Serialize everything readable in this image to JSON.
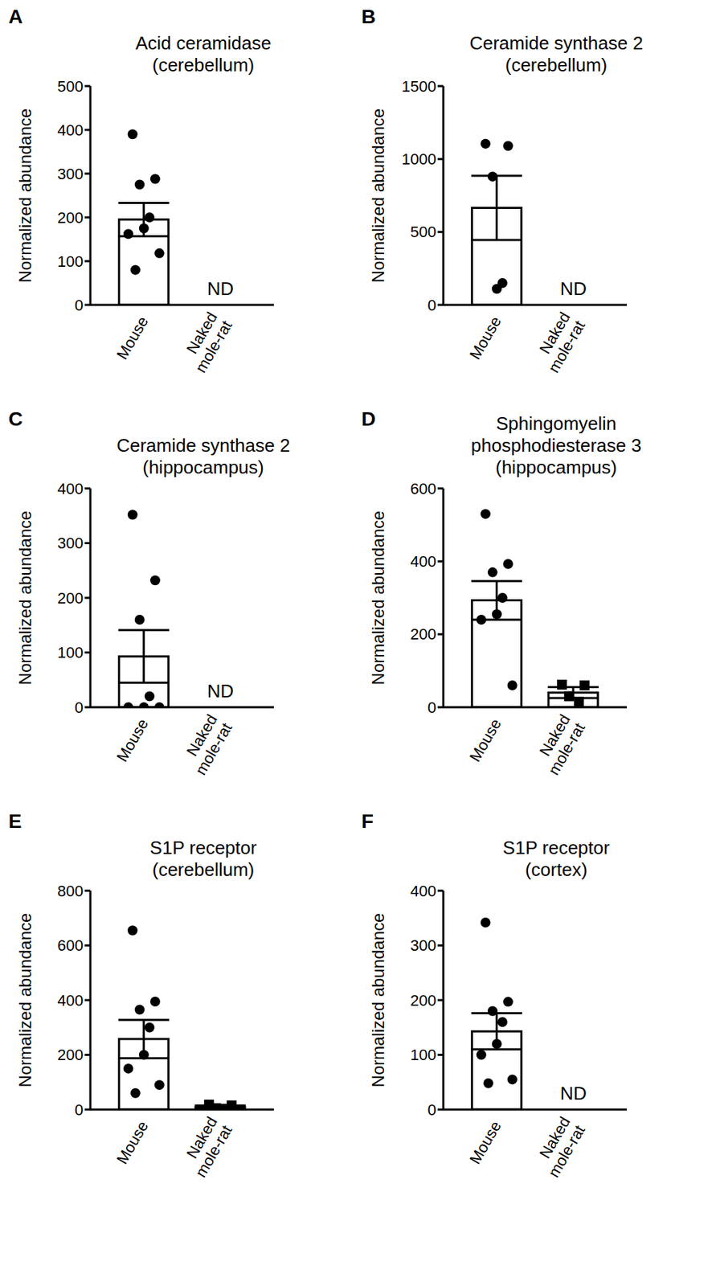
{
  "chart_data": [
    {
      "panel_label": "A",
      "type": "bar",
      "title": "Acid ceramidase\n(cerebellum)",
      "y_label": "Normalized abundance",
      "categories": [
        "Mouse",
        "Naked mole-rat"
      ],
      "values": [
        195,
        0
      ],
      "error": [
        38,
        null
      ],
      "points": [
        [
          390,
          288,
          275,
          200,
          175,
          162,
          118,
          80
        ],
        []
      ],
      "color": "#000000",
      "ylim": [
        0,
        500
      ],
      "yticks": [
        0,
        100,
        200,
        300,
        400,
        500
      ],
      "annotations": [
        {
          "x": "Naked mole-rat",
          "text": "ND"
        }
      ]
    },
    {
      "panel_label": "B",
      "type": "bar",
      "title": "Ceramide synthase 2\n(cerebellum)",
      "y_label": "Normalized abundance",
      "categories": [
        "Mouse",
        "Naked mole-rat"
      ],
      "values": [
        665,
        0
      ],
      "error": [
        220,
        null
      ],
      "points": [
        [
          1105,
          1090,
          880,
          150,
          110
        ],
        []
      ],
      "color": "#000000",
      "ylim": [
        0,
        1500
      ],
      "yticks": [
        0,
        500,
        1000,
        1500
      ],
      "annotations": [
        {
          "x": "Naked mole-rat",
          "text": "ND"
        }
      ]
    },
    {
      "panel_label": "C",
      "type": "bar",
      "title": "Ceramide synthase 2\n(hippocampus)",
      "y_label": "Normalized abundance",
      "categories": [
        "Mouse",
        "Naked mole-rat"
      ],
      "values": [
        93,
        0
      ],
      "error": [
        48,
        null
      ],
      "points": [
        [
          352,
          232,
          160,
          20,
          0,
          0,
          0
        ],
        []
      ],
      "color": "#000000",
      "ylim": [
        0,
        400
      ],
      "yticks": [
        0,
        100,
        200,
        300,
        400
      ],
      "annotations": [
        {
          "x": "Naked mole-rat",
          "text": "ND"
        }
      ]
    },
    {
      "panel_label": "D",
      "type": "bar",
      "title": "Sphingomyelin\nphosphodiesterase 3\n(hippocampus)",
      "y_label": "Normalized abundance",
      "categories": [
        "Mouse",
        "Naked mole-rat"
      ],
      "values": [
        293,
        40
      ],
      "error": [
        53,
        15
      ],
      "points": [
        [
          530,
          393,
          370,
          300,
          255,
          240,
          60
        ],
        [
          62,
          60,
          30,
          15
        ]
      ],
      "color": "#000000",
      "ylim": [
        0,
        600
      ],
      "yticks": [
        0,
        200,
        400,
        600
      ],
      "annotations": []
    },
    {
      "panel_label": "E",
      "type": "bar",
      "title": "S1P receptor\n(cerebellum)",
      "y_label": "Normalized abundance",
      "categories": [
        "Mouse",
        "Naked mole-rat"
      ],
      "values": [
        258,
        10
      ],
      "error": [
        70,
        5
      ],
      "points": [
        [
          655,
          395,
          365,
          300,
          200,
          150,
          90,
          60
        ],
        [
          18,
          15,
          5,
          3
        ]
      ],
      "color": "#000000",
      "ylim": [
        0,
        800
      ],
      "yticks": [
        0,
        200,
        400,
        600,
        800
      ],
      "annotations": []
    },
    {
      "panel_label": "F",
      "type": "bar",
      "title": "S1P receptor\n(cortex)",
      "y_label": "Normalized abundance",
      "categories": [
        "Mouse",
        "Naked mole-rat"
      ],
      "values": [
        143,
        0
      ],
      "error": [
        33,
        null
      ],
      "points": [
        [
          342,
          197,
          180,
          160,
          120,
          100,
          55,
          48
        ],
        []
      ],
      "color": "#000000",
      "ylim": [
        0,
        400
      ],
      "yticks": [
        0,
        100,
        200,
        300,
        400
      ],
      "annotations": [
        {
          "x": "Naked mole-rat",
          "text": "ND"
        }
      ]
    }
  ]
}
